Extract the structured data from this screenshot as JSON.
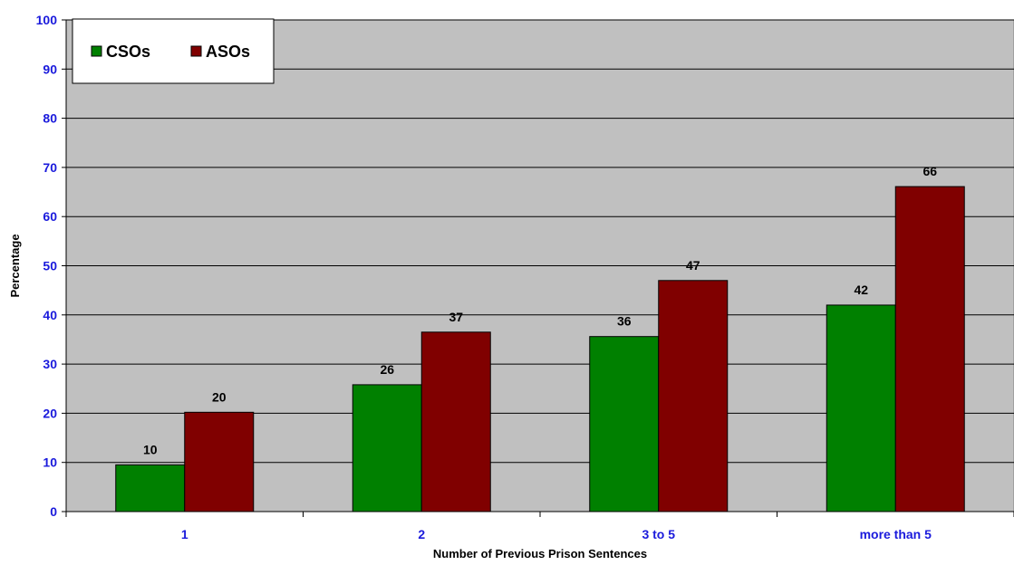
{
  "chart_data": {
    "type": "bar",
    "title": "",
    "xlabel": "Number of Previous Prison Sentences",
    "ylabel": "Percentage",
    "categories": [
      "1",
      "2",
      "3 to 5",
      "more than 5"
    ],
    "ylim": [
      0,
      100
    ],
    "yticks": [
      0,
      10,
      20,
      30,
      40,
      50,
      60,
      70,
      80,
      90,
      100
    ],
    "grid": true,
    "legend_position": "top-left",
    "series": [
      {
        "name": "CSOs",
        "color": "#008000",
        "values": [
          9.5,
          25.8,
          35.6,
          42
        ],
        "labels": [
          "10",
          "26",
          "36",
          "42"
        ]
      },
      {
        "name": "ASOs",
        "color": "#800000",
        "values": [
          20.2,
          36.5,
          47,
          66.1
        ],
        "labels": [
          "20",
          "37",
          "47",
          "66"
        ]
      }
    ],
    "plot_background": "#c0c0c0"
  }
}
